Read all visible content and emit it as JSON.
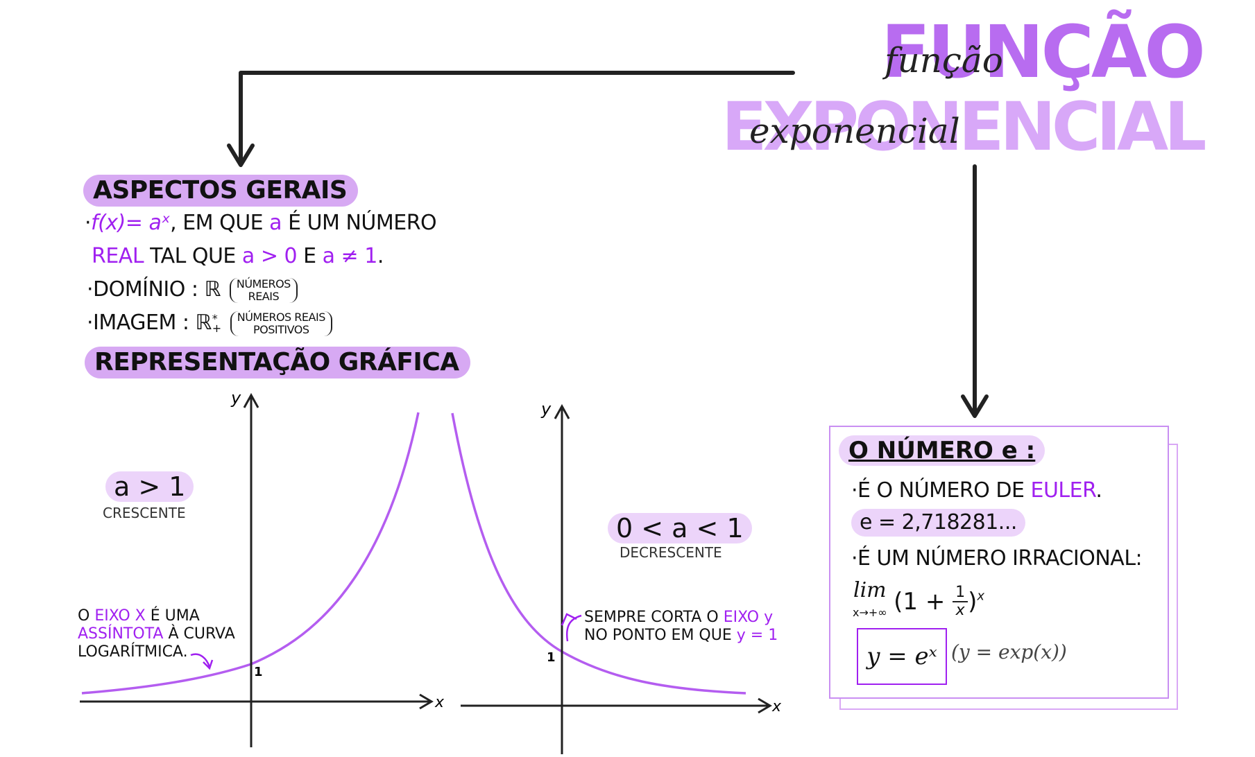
{
  "title": {
    "block_line1": "FUNÇÃO",
    "block_line2": "EXPONENCIAL",
    "script_line1": "função",
    "script_line2": "exponencial"
  },
  "aspectos": {
    "heading": "ASPECTOS GERAIS",
    "l1_formula": "f(x)= aˣ",
    "l1_mid": ", EM QUE ",
    "l1_a": "a",
    "l1_end": " É UM NÚMERO",
    "l2_real": "REAL",
    "l2_mid": " TAL QUE ",
    "l2_cond1": "a > 0",
    "l2_e": " E ",
    "l2_cond2": "a ≠ 1",
    "l2_dot": ".",
    "dominio_label": "·DOMÍNIO : ℝ",
    "dominio_note_top": "NÚMEROS",
    "dominio_note_bottom": "REAIS",
    "imagem_label": "·IMAGEM : ℝ",
    "imagem_sup": "*",
    "imagem_sub": "+",
    "imagem_note_top": "NÚMEROS REAIS",
    "imagem_note_bottom": "POSITIVOS"
  },
  "representacao": {
    "heading": "REPRESENTAÇÃO GRÁFICA"
  },
  "graph1": {
    "condition": "a > 1",
    "label": "CRESCENTE",
    "axis_x": "x",
    "axis_y": "y",
    "intercept": "1",
    "note_l1a": "O ",
    "note_l1b": "EIXO X",
    "note_l1c": " É UMA",
    "note_l2a": "ASSÍNTOTA",
    "note_l2b": " À CURVA",
    "note_l3": "LOGARÍTMICA."
  },
  "graph2": {
    "condition": "0 < a < 1",
    "label": "DECRESCENTE",
    "axis_x": "x",
    "axis_y": "y",
    "intercept": "1",
    "note_l1a": "SEMPRE CORTA O ",
    "note_l1b": "EIXO y",
    "note_l2a": "NO PONTO EM QUE ",
    "note_l2b": "y = 1"
  },
  "numero_e": {
    "heading": "O NÚMERO e :",
    "l1a": "·É O NÚMERO DE ",
    "l1b": "EULER",
    "l1c": ".",
    "value": "e = 2,718281...",
    "l2": "·É UM NÚMERO IRRACIONAL:",
    "lim": "lim",
    "lim_sub": "x→+∞",
    "lim_expr_open": "(1 + ",
    "lim_frac_num": "1",
    "lim_frac_den": "x",
    "lim_expr_close": ")",
    "lim_exp": "x",
    "formula": "y = eˣ",
    "formula_alt": "(y = exp(x))"
  },
  "colors": {
    "accent": "#a020f0",
    "highlight": "#d7a9f3",
    "curve": "#b45df0",
    "title_fill": "#b86cf0",
    "title_light": "#d8a8f8"
  }
}
